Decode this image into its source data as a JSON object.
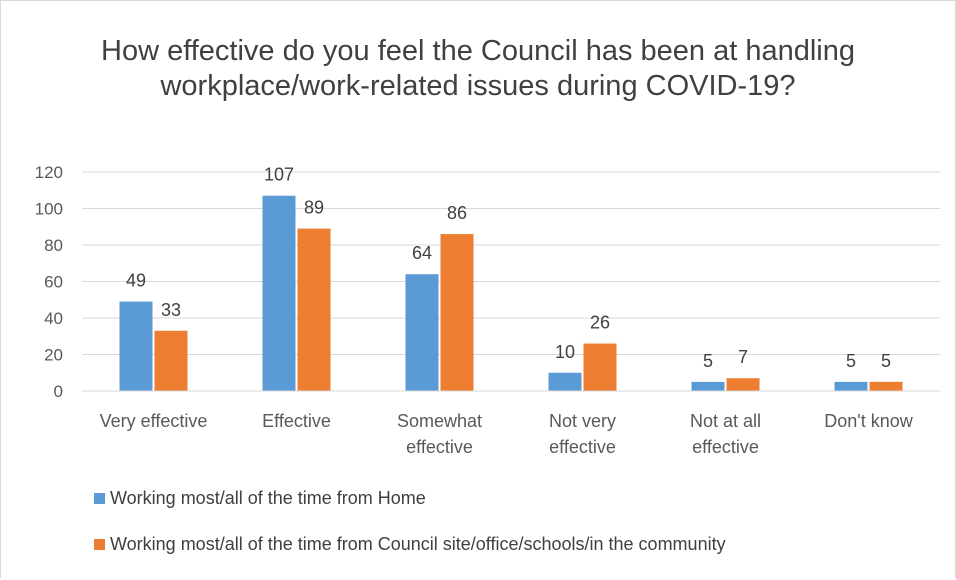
{
  "chart_data": {
    "type": "bar",
    "title": "How effective do you feel the Council has been at handling workplace/work-related issues during COVID-19?",
    "categories": [
      [
        "Very effective"
      ],
      [
        "Effective"
      ],
      [
        "Somewhat",
        "effective"
      ],
      [
        "Not very",
        "effective"
      ],
      [
        "Not at all",
        "effective"
      ],
      [
        "Don't know"
      ]
    ],
    "series": [
      {
        "name": "Working most/all of the time from Home",
        "color": "#5b9bd5",
        "values": [
          49,
          107,
          64,
          10,
          5,
          5
        ]
      },
      {
        "name": "Working most/all of the time from Council site/office/schools/in the community",
        "color": "#ed7d31",
        "values": [
          33,
          89,
          86,
          26,
          7,
          5
        ]
      }
    ],
    "ylim": [
      0,
      120
    ],
    "yticks": [
      0,
      20,
      40,
      60,
      80,
      100,
      120
    ],
    "grid": true,
    "legend_position": "bottom-left"
  }
}
